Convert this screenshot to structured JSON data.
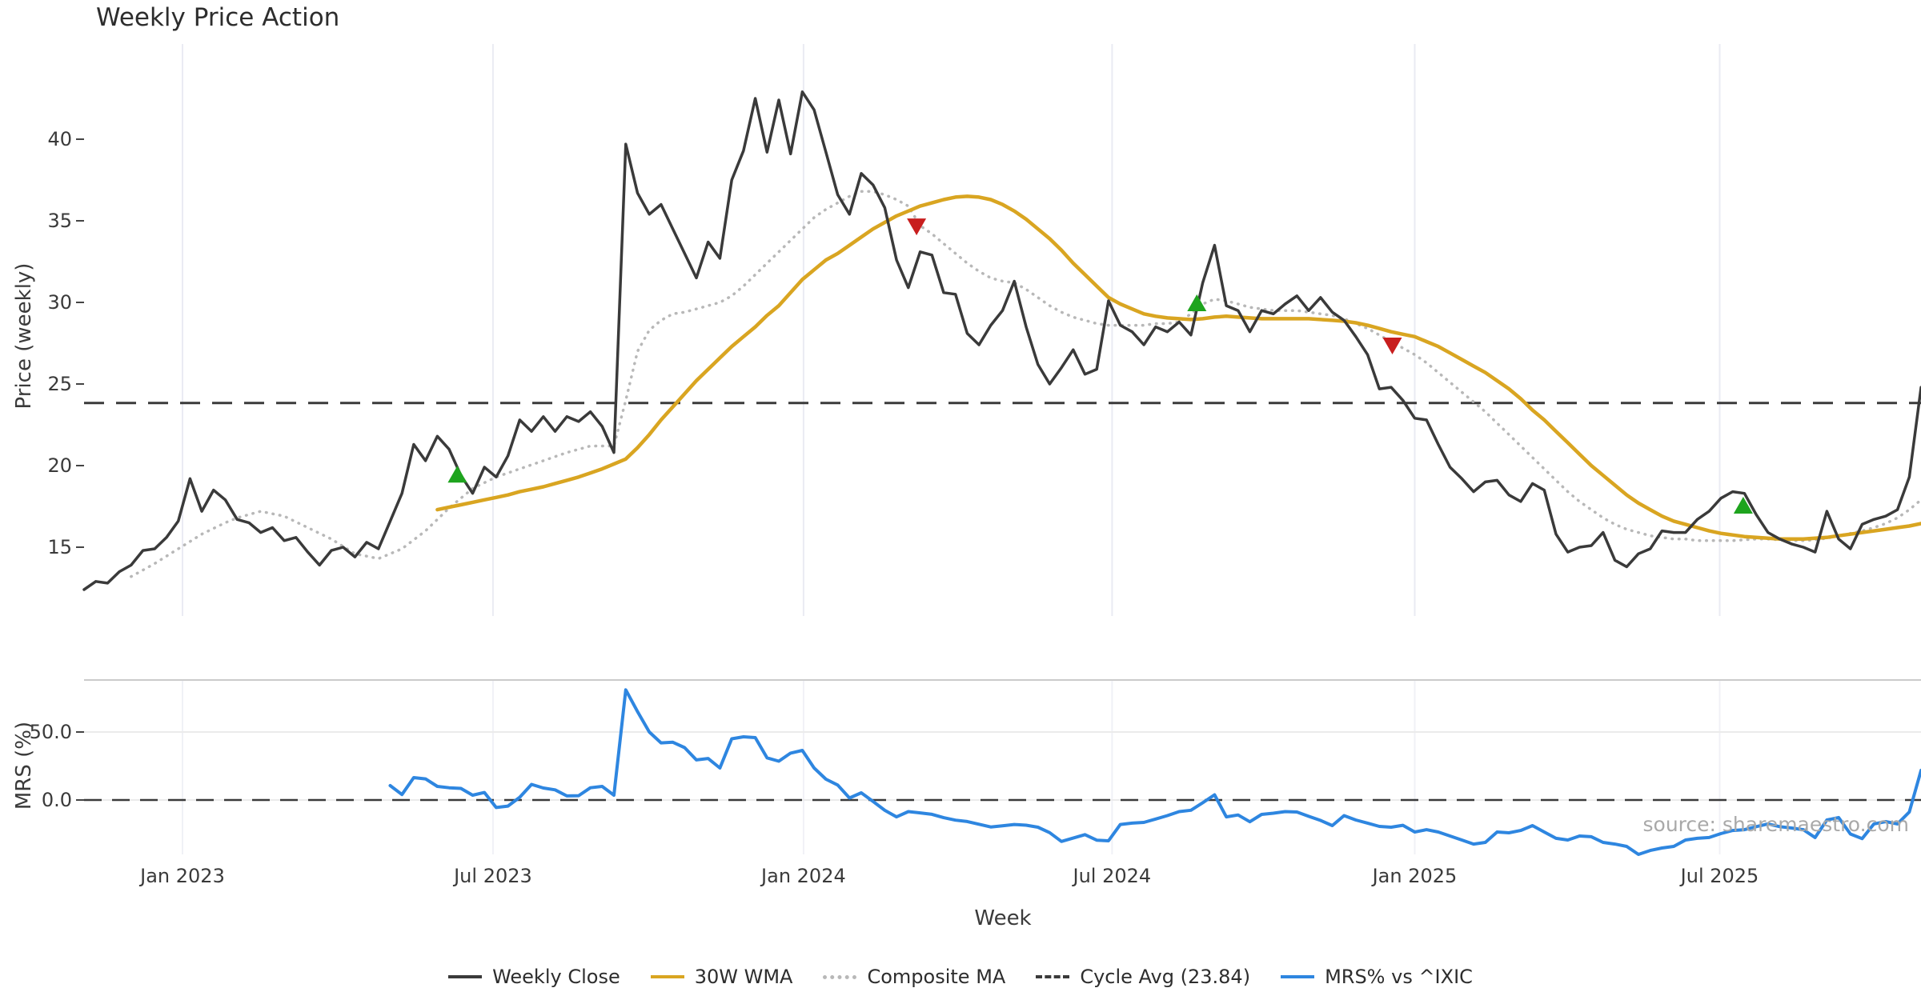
{
  "page": {
    "title": "Weekly Price Action",
    "ylabel_price": "Price (weekly)",
    "ylabel_mrs": "MRS (%)",
    "xlabel": "Week",
    "watermark": "source: sharemaestro.com"
  },
  "colors": {
    "weekly_close": "#3a3a3a",
    "wma_30w": "#d9a521",
    "composite_ma": "#b8b8b8",
    "cycle_avg": "#3a3a3a",
    "mrs": "#2e86e0",
    "buy_marker": "#1ea41e",
    "sell_marker": "#c81e1e",
    "grid_top": "#eaebf3",
    "grid_bottom": "#f0f1f6",
    "hgrid_bottom": "#ebebeb",
    "spine": "#cbcbcb"
  },
  "legend": {
    "items": [
      {
        "label": "Weekly Close",
        "color": "#3a3a3a",
        "style": "solid"
      },
      {
        "label": "30W WMA",
        "color": "#d9a521",
        "style": "solid"
      },
      {
        "label": "Composite MA",
        "color": "#b8b8b8",
        "style": "dotted"
      },
      {
        "label": "Cycle Avg (23.84)",
        "color": "#3a3a3a",
        "style": "dashed"
      },
      {
        "label": "MRS% vs ^IXIC",
        "color": "#2e86e0",
        "style": "solid"
      }
    ]
  },
  "chart_data": [
    {
      "type": "line",
      "panel": "price",
      "title": "Weekly Price Action",
      "ylabel": "Price (weekly)",
      "x_is": "weekly index (week 0 = first plotted week, ~Nov 2022)",
      "ylim": [
        10.8,
        45.8
      ],
      "grid": "vertical-only",
      "y_ticks": [
        40,
        35,
        30,
        25,
        20,
        15
      ],
      "x_ticks": [
        {
          "label": "Jan 2023",
          "week": 8.36
        },
        {
          "label": "Jul 2023",
          "week": 34.73
        },
        {
          "label": "Jan 2024",
          "week": 61.1
        },
        {
          "label": "Jul 2024",
          "week": 87.3
        },
        {
          "label": "Jan 2025",
          "week": 113.0
        },
        {
          "label": "Jul 2025",
          "week": 138.9
        }
      ],
      "cycle_avg": 23.84,
      "series": [
        {
          "name": "Composite MA",
          "color": "#b8b8b8",
          "width": 3.5,
          "dash": "dotted",
          "values": [
            null,
            null,
            null,
            null,
            13.2,
            13.6,
            14.0,
            14.45,
            14.9,
            15.35,
            15.8,
            16.15,
            16.5,
            16.8,
            17.0,
            17.2,
            17.05,
            16.9,
            16.55,
            16.2,
            15.85,
            15.5,
            15.05,
            14.6,
            14.45,
            14.3,
            14.6,
            14.9,
            15.45,
            16.0,
            16.7,
            17.4,
            18.0,
            18.6,
            18.95,
            19.3,
            19.55,
            19.8,
            20.05,
            20.3,
            20.55,
            20.8,
            21.0,
            21.2,
            21.2,
            21.2,
            24.0,
            27.0,
            28.3,
            28.9,
            29.3,
            29.4,
            29.6,
            29.8,
            30.0,
            30.4,
            31.0,
            31.7,
            32.4,
            33.1,
            33.8,
            34.5,
            35.2,
            35.7,
            36.1,
            36.5,
            36.8,
            36.8,
            36.6,
            36.3,
            35.9,
            34.7,
            34.2,
            33.6,
            33.0,
            32.4,
            31.9,
            31.5,
            31.3,
            31.2,
            30.8,
            30.3,
            29.8,
            29.4,
            29.1,
            28.9,
            28.7,
            28.6,
            28.6,
            28.6,
            28.6,
            28.7,
            28.7,
            28.8,
            29.3,
            29.9,
            30.2,
            30.1,
            29.9,
            29.7,
            29.6,
            29.5,
            29.5,
            29.5,
            29.4,
            29.3,
            29.2,
            29.0,
            28.7,
            28.4,
            28.0,
            27.6,
            27.2,
            26.8,
            26.3,
            25.7,
            25.1,
            24.5,
            23.9,
            23.3,
            22.6,
            21.9,
            21.2,
            20.5,
            19.8,
            19.1,
            18.4,
            17.8,
            17.3,
            16.8,
            16.4,
            16.1,
            15.9,
            15.7,
            15.6,
            15.5,
            15.5,
            15.4,
            15.4,
            15.4,
            15.4,
            15.45,
            15.5,
            15.5,
            15.45,
            15.4,
            15.4,
            15.45,
            15.55,
            15.7,
            15.85,
            16.0,
            16.2,
            16.45,
            16.8,
            17.3,
            17.9
          ]
        },
        {
          "name": "30W WMA",
          "color": "#d9a521",
          "width": 4.5,
          "dash": "solid",
          "values": [
            null,
            null,
            null,
            null,
            null,
            null,
            null,
            null,
            null,
            null,
            null,
            null,
            null,
            null,
            null,
            null,
            null,
            null,
            null,
            null,
            null,
            null,
            null,
            null,
            null,
            null,
            null,
            null,
            null,
            null,
            17.3,
            17.45,
            17.6,
            17.75,
            17.9,
            18.05,
            18.2,
            18.4,
            18.55,
            18.7,
            18.9,
            19.1,
            19.3,
            19.55,
            19.8,
            20.1,
            20.4,
            21.1,
            21.9,
            22.8,
            23.6,
            24.4,
            25.2,
            25.9,
            26.6,
            27.3,
            27.9,
            28.5,
            29.2,
            29.8,
            30.6,
            31.4,
            32.0,
            32.6,
            33.0,
            33.5,
            34.0,
            34.5,
            34.9,
            35.3,
            35.6,
            35.9,
            36.1,
            36.3,
            36.45,
            36.5,
            36.45,
            36.3,
            36.0,
            35.6,
            35.1,
            34.5,
            33.9,
            33.2,
            32.4,
            31.7,
            31.0,
            30.3,
            29.9,
            29.6,
            29.3,
            29.15,
            29.05,
            29.0,
            28.95,
            29.0,
            29.1,
            29.15,
            29.1,
            29.05,
            29.0,
            29.0,
            29.0,
            29.0,
            29.0,
            28.95,
            28.9,
            28.85,
            28.75,
            28.6,
            28.4,
            28.2,
            28.05,
            27.9,
            27.6,
            27.3,
            26.9,
            26.5,
            26.1,
            25.7,
            25.2,
            24.7,
            24.1,
            23.4,
            22.8,
            22.1,
            21.4,
            20.7,
            20.0,
            19.4,
            18.8,
            18.2,
            17.7,
            17.3,
            16.9,
            16.6,
            16.4,
            16.2,
            16.0,
            15.85,
            15.75,
            15.65,
            15.6,
            15.55,
            15.5,
            15.5,
            15.5,
            15.55,
            15.6,
            15.7,
            15.8,
            15.9,
            16.0,
            16.1,
            16.2,
            16.3,
            16.45
          ]
        },
        {
          "name": "Weekly Close",
          "color": "#3a3a3a",
          "width": 3.5,
          "dash": "solid",
          "values": [
            12.4,
            12.9,
            12.8,
            13.5,
            13.9,
            14.8,
            14.9,
            15.6,
            16.6,
            19.2,
            17.2,
            18.5,
            17.9,
            16.7,
            16.5,
            15.9,
            16.2,
            15.4,
            15.6,
            14.7,
            13.9,
            14.8,
            15.0,
            14.4,
            15.3,
            14.9,
            16.6,
            18.3,
            21.3,
            20.3,
            21.8,
            21.0,
            19.4,
            18.3,
            19.9,
            19.3,
            20.6,
            22.8,
            22.1,
            23.0,
            22.1,
            23.0,
            22.7,
            23.3,
            22.4,
            20.8,
            39.7,
            36.7,
            35.4,
            36.0,
            34.5,
            33.0,
            31.5,
            33.7,
            32.7,
            37.5,
            39.3,
            42.5,
            39.2,
            42.4,
            39.1,
            42.9,
            41.8,
            39.2,
            36.6,
            35.4,
            37.9,
            37.2,
            35.8,
            32.6,
            30.9,
            33.1,
            32.9,
            30.6,
            30.5,
            28.1,
            27.4,
            28.6,
            29.5,
            31.3,
            28.5,
            26.2,
            25.0,
            26.0,
            27.1,
            25.6,
            25.9,
            30.1,
            28.6,
            28.2,
            27.4,
            28.5,
            28.2,
            28.8,
            28.0,
            31.2,
            33.5,
            29.8,
            29.5,
            28.2,
            29.5,
            29.3,
            29.9,
            30.4,
            29.5,
            30.3,
            29.4,
            28.9,
            27.9,
            26.8,
            24.7,
            24.8,
            24.0,
            22.9,
            22.8,
            21.3,
            19.9,
            19.2,
            18.4,
            19.0,
            19.1,
            18.2,
            17.8,
            18.9,
            18.5,
            15.8,
            14.7,
            15.0,
            15.1,
            15.9,
            14.2,
            13.8,
            14.6,
            14.9,
            16.0,
            15.9,
            15.9,
            16.7,
            17.2,
            18.0,
            18.4,
            18.3,
            17.0,
            15.9,
            15.5,
            15.2,
            15.0,
            14.7,
            17.2,
            15.5,
            14.9,
            16.4,
            16.7,
            16.9,
            17.3,
            19.3,
            24.8
          ]
        }
      ],
      "markers": [
        {
          "signal": "buy",
          "shape": "triangle-up",
          "color": "#1ea41e",
          "week": 31.7,
          "value": 19.4
        },
        {
          "signal": "sell",
          "shape": "triangle-down",
          "color": "#c81e1e",
          "week": 70.7,
          "value": 34.7
        },
        {
          "signal": "buy",
          "shape": "triangle-up",
          "color": "#1ea41e",
          "week": 94.5,
          "value": 29.9
        },
        {
          "signal": "sell",
          "shape": "triangle-down",
          "color": "#c81e1e",
          "week": 111.1,
          "value": 27.4
        },
        {
          "signal": "buy",
          "shape": "triangle-up",
          "color": "#1ea41e",
          "week": 140.9,
          "value": 17.5
        }
      ]
    },
    {
      "type": "line",
      "panel": "relative-strength",
      "ylabel": "MRS (%)",
      "xlabel": "Week",
      "ylim": [
        -42,
        88
      ],
      "y_ticks": [
        50.0,
        0.0
      ],
      "zero_line": 0.0,
      "series": [
        {
          "name": "MRS% vs ^IXIC",
          "color": "#2e86e0",
          "width": 4,
          "dash": "solid",
          "values": [
            null,
            null,
            null,
            null,
            null,
            null,
            null,
            null,
            null,
            null,
            null,
            null,
            null,
            null,
            null,
            null,
            null,
            null,
            null,
            null,
            null,
            null,
            null,
            null,
            null,
            null,
            10.6,
            4.0,
            16.5,
            15.5,
            10.0,
            9.0,
            8.5,
            3.5,
            5.5,
            -5.5,
            -4.5,
            2.0,
            11.5,
            8.8,
            7.5,
            3.0,
            3.2,
            9.0,
            10.0,
            3.5,
            81.0,
            65.0,
            50.0,
            42.0,
            42.5,
            38.5,
            29.5,
            30.5,
            23.5,
            45.0,
            46.5,
            45.9,
            31.0,
            28.5,
            34.5,
            36.5,
            23.5,
            15.3,
            11.0,
            1.5,
            5.3,
            -1.0,
            -7.6,
            -12.4,
            -8.5,
            -9.5,
            -10.5,
            -13.0,
            -14.8,
            -15.8,
            -17.8,
            -19.8,
            -19.0,
            -18.0,
            -18.5,
            -20.0,
            -24.0,
            -30.5,
            -28.0,
            -25.5,
            -29.5,
            -30.0,
            -18.0,
            -17.0,
            -16.5,
            -14.0,
            -11.5,
            -8.5,
            -7.5,
            -2.0,
            3.8,
            -12.4,
            -11.0,
            -16.0,
            -10.6,
            -9.7,
            -8.5,
            -8.8,
            -12.0,
            -15.0,
            -18.8,
            -11.5,
            -14.7,
            -17.0,
            -19.4,
            -20.0,
            -18.6,
            -23.5,
            -21.8,
            -23.5,
            -26.5,
            -29.4,
            -32.4,
            -31.2,
            -23.5,
            -24.1,
            -22.4,
            -18.8,
            -23.5,
            -28.2,
            -29.4,
            -26.5,
            -27.0,
            -31.2,
            -32.4,
            -34.1,
            -40.0,
            -37.1,
            -35.3,
            -34.1,
            -29.4,
            -28.2,
            -27.6,
            -24.7,
            -22.4,
            -21.8,
            -19.6,
            -17.6,
            -19.6,
            -20.6,
            -21.8,
            -27.6,
            -14.7,
            -12.9,
            -25.0,
            -28.4,
            -17.6,
            -15.9,
            -17.6,
            -8.8,
            21.8
          ]
        }
      ]
    }
  ]
}
